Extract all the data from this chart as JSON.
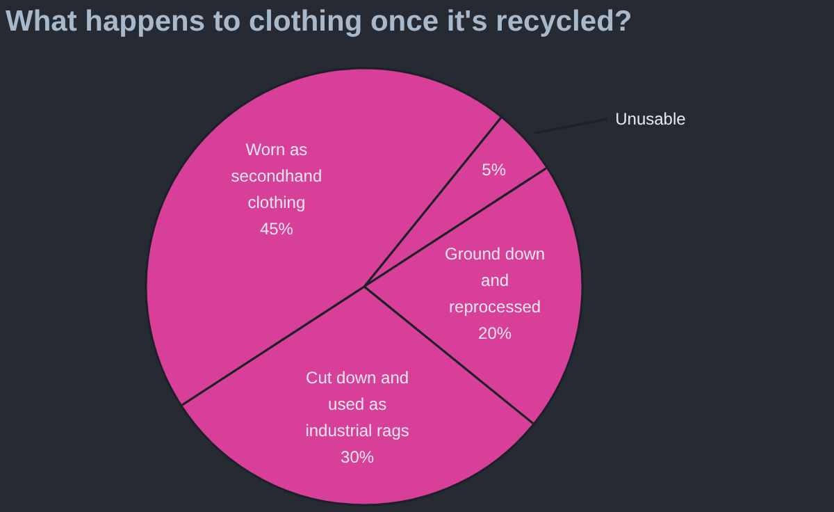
{
  "chart_data": {
    "type": "pie",
    "title": "What happens to clothing once it's recycled?",
    "categories": [
      "Unusable",
      "Ground down\nand\nreprocessed",
      "Cut down and\nused as\nindustrial rags",
      "Worn as\nsecondhand\nclothing"
    ],
    "values": [
      5,
      20,
      30,
      45
    ],
    "value_labels": [
      "5%",
      "20%",
      "30%",
      "45%"
    ],
    "colors": [
      "#d83f98",
      "#d83f98",
      "#d83f98",
      "#d83f98"
    ]
  }
}
